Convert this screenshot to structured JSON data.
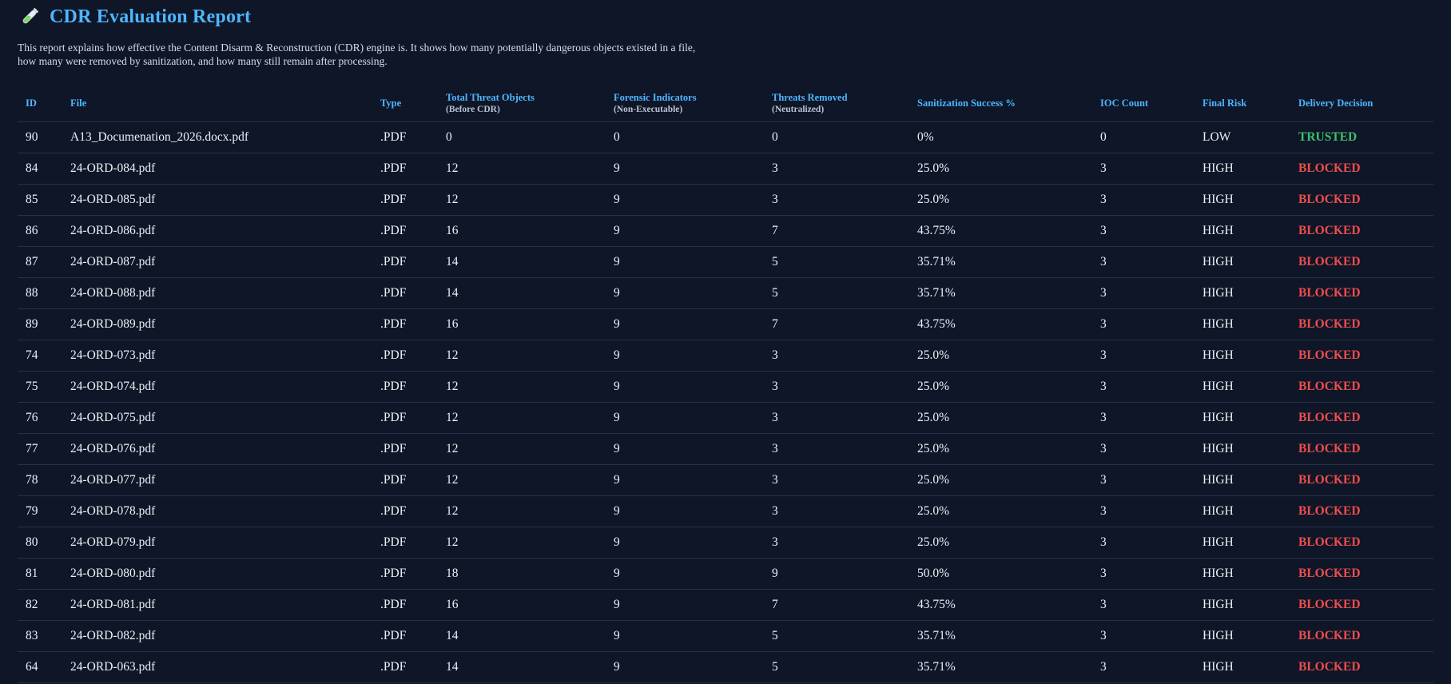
{
  "report": {
    "title": "CDR Evaluation Report",
    "icon": "test-tube-icon",
    "description_line1": "This report explains how effective the Content Disarm & Reconstruction (CDR) engine is. It shows how many potentially dangerous objects existed in a file,",
    "description_line2": "how many were removed by sanitization, and how many still remain after processing."
  },
  "colors": {
    "accent": "#4fb6ff",
    "background": "#0e1628",
    "blocked": "#ef4d4d",
    "trusted": "#3fbf6a"
  },
  "table": {
    "headers": [
      {
        "label": "ID",
        "sub": ""
      },
      {
        "label": "File",
        "sub": ""
      },
      {
        "label": "Type",
        "sub": ""
      },
      {
        "label": "Total Threat Objects",
        "sub": "(Before CDR)"
      },
      {
        "label": "Forensic Indicators",
        "sub": "(Non-Executable)"
      },
      {
        "label": "Threats Removed",
        "sub": "(Neutralized)"
      },
      {
        "label": "Sanitization Success %",
        "sub": ""
      },
      {
        "label": "IOC Count",
        "sub": ""
      },
      {
        "label": "Final Risk",
        "sub": ""
      },
      {
        "label": "Delivery Decision",
        "sub": ""
      }
    ],
    "rows": [
      {
        "id": "90",
        "file": "A13_Documenation_2026.docx.pdf",
        "type": ".PDF",
        "total": "0",
        "forensic": "0",
        "removed": "0",
        "success": "0%",
        "ioc": "0",
        "risk": "LOW",
        "decision": "TRUSTED"
      },
      {
        "id": "84",
        "file": "24-ORD-084.pdf",
        "type": ".PDF",
        "total": "12",
        "forensic": "9",
        "removed": "3",
        "success": "25.0%",
        "ioc": "3",
        "risk": "HIGH",
        "decision": "BLOCKED"
      },
      {
        "id": "85",
        "file": "24-ORD-085.pdf",
        "type": ".PDF",
        "total": "12",
        "forensic": "9",
        "removed": "3",
        "success": "25.0%",
        "ioc": "3",
        "risk": "HIGH",
        "decision": "BLOCKED"
      },
      {
        "id": "86",
        "file": "24-ORD-086.pdf",
        "type": ".PDF",
        "total": "16",
        "forensic": "9",
        "removed": "7",
        "success": "43.75%",
        "ioc": "3",
        "risk": "HIGH",
        "decision": "BLOCKED"
      },
      {
        "id": "87",
        "file": "24-ORD-087.pdf",
        "type": ".PDF",
        "total": "14",
        "forensic": "9",
        "removed": "5",
        "success": "35.71%",
        "ioc": "3",
        "risk": "HIGH",
        "decision": "BLOCKED"
      },
      {
        "id": "88",
        "file": "24-ORD-088.pdf",
        "type": ".PDF",
        "total": "14",
        "forensic": "9",
        "removed": "5",
        "success": "35.71%",
        "ioc": "3",
        "risk": "HIGH",
        "decision": "BLOCKED"
      },
      {
        "id": "89",
        "file": "24-ORD-089.pdf",
        "type": ".PDF",
        "total": "16",
        "forensic": "9",
        "removed": "7",
        "success": "43.75%",
        "ioc": "3",
        "risk": "HIGH",
        "decision": "BLOCKED"
      },
      {
        "id": "74",
        "file": "24-ORD-073.pdf",
        "type": ".PDF",
        "total": "12",
        "forensic": "9",
        "removed": "3",
        "success": "25.0%",
        "ioc": "3",
        "risk": "HIGH",
        "decision": "BLOCKED"
      },
      {
        "id": "75",
        "file": "24-ORD-074.pdf",
        "type": ".PDF",
        "total": "12",
        "forensic": "9",
        "removed": "3",
        "success": "25.0%",
        "ioc": "3",
        "risk": "HIGH",
        "decision": "BLOCKED"
      },
      {
        "id": "76",
        "file": "24-ORD-075.pdf",
        "type": ".PDF",
        "total": "12",
        "forensic": "9",
        "removed": "3",
        "success": "25.0%",
        "ioc": "3",
        "risk": "HIGH",
        "decision": "BLOCKED"
      },
      {
        "id": "77",
        "file": "24-ORD-076.pdf",
        "type": ".PDF",
        "total": "12",
        "forensic": "9",
        "removed": "3",
        "success": "25.0%",
        "ioc": "3",
        "risk": "HIGH",
        "decision": "BLOCKED"
      },
      {
        "id": "78",
        "file": "24-ORD-077.pdf",
        "type": ".PDF",
        "total": "12",
        "forensic": "9",
        "removed": "3",
        "success": "25.0%",
        "ioc": "3",
        "risk": "HIGH",
        "decision": "BLOCKED"
      },
      {
        "id": "79",
        "file": "24-ORD-078.pdf",
        "type": ".PDF",
        "total": "12",
        "forensic": "9",
        "removed": "3",
        "success": "25.0%",
        "ioc": "3",
        "risk": "HIGH",
        "decision": "BLOCKED"
      },
      {
        "id": "80",
        "file": "24-ORD-079.pdf",
        "type": ".PDF",
        "total": "12",
        "forensic": "9",
        "removed": "3",
        "success": "25.0%",
        "ioc": "3",
        "risk": "HIGH",
        "decision": "BLOCKED"
      },
      {
        "id": "81",
        "file": "24-ORD-080.pdf",
        "type": ".PDF",
        "total": "18",
        "forensic": "9",
        "removed": "9",
        "success": "50.0%",
        "ioc": "3",
        "risk": "HIGH",
        "decision": "BLOCKED"
      },
      {
        "id": "82",
        "file": "24-ORD-081.pdf",
        "type": ".PDF",
        "total": "16",
        "forensic": "9",
        "removed": "7",
        "success": "43.75%",
        "ioc": "3",
        "risk": "HIGH",
        "decision": "BLOCKED"
      },
      {
        "id": "83",
        "file": "24-ORD-082.pdf",
        "type": ".PDF",
        "total": "14",
        "forensic": "9",
        "removed": "5",
        "success": "35.71%",
        "ioc": "3",
        "risk": "HIGH",
        "decision": "BLOCKED"
      },
      {
        "id": "64",
        "file": "24-ORD-063.pdf",
        "type": ".PDF",
        "total": "14",
        "forensic": "9",
        "removed": "5",
        "success": "35.71%",
        "ioc": "3",
        "risk": "HIGH",
        "decision": "BLOCKED"
      }
    ]
  }
}
